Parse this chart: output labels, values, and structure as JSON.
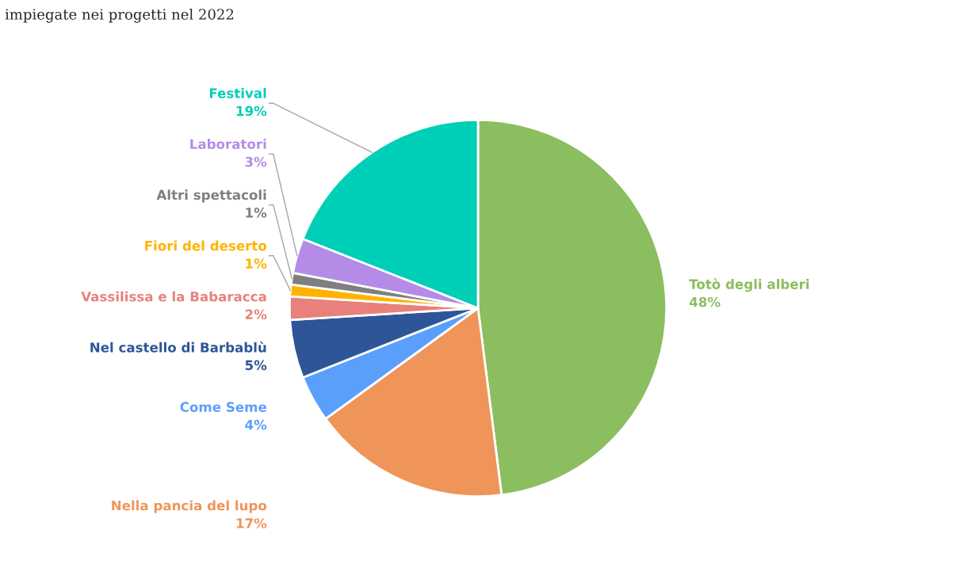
{
  "chart_data": {
    "type": "pie",
    "title": "impiegate nei progetti nel 2022",
    "categories": [
      "Totò degli alberi",
      "Nella pancia del lupo",
      "Come Seme",
      "Nel castello di Barbablù",
      "Vassilissa e la Babaracca",
      "Fiori del deserto",
      "Altri spettacoli",
      "Laboratori",
      "Festival"
    ],
    "values": [
      48,
      17,
      4,
      5,
      2,
      1,
      1,
      3,
      19
    ],
    "colors": [
      "#8bbe5f",
      "#f0955a",
      "#5b9ffd",
      "#2e5597",
      "#e8807b",
      "#ffb300",
      "#7f7f7f",
      "#b48be6",
      "#00cfb8"
    ],
    "value_labels": [
      "48%",
      "17%",
      "4%",
      "5%",
      "2%",
      "1%",
      "1%",
      "3%",
      "19%"
    ],
    "legend": false
  }
}
